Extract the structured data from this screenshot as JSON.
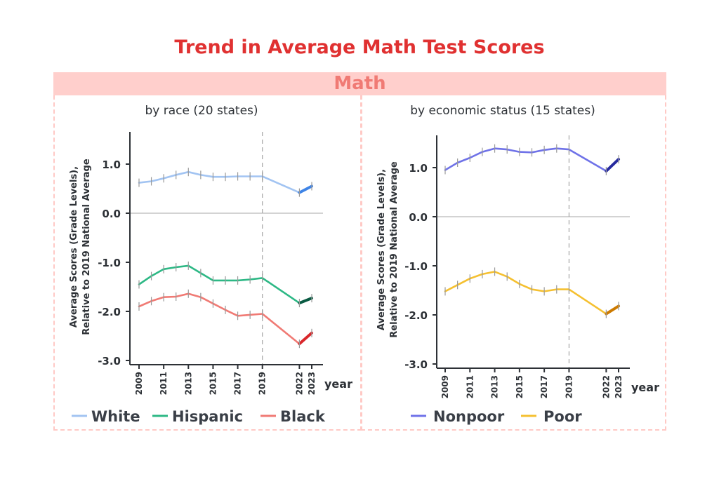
{
  "title": "Trend in Average Math Test Scores",
  "band_label": "Math",
  "colors": {
    "title": "#e03131",
    "band_bg": "#ffcfcc",
    "band_text": "#f07a74",
    "frame": "#ffc9c5",
    "axis": "#2d3136",
    "text": "#2d3136"
  },
  "chart_data": [
    {
      "type": "line",
      "title": "by race (20 states)",
      "xlabel": "year",
      "ylabel": "Average  Scores  (Grade  Levels),\nRelative to 2019 National Average",
      "xticks": [
        "2009",
        "2011",
        "2013",
        "2015",
        "2017",
        "2019",
        "2022",
        "2023"
      ],
      "yticks": [
        "1.0",
        "0.0",
        "-1.0",
        "-2.0",
        "-3.0"
      ],
      "ylim": [
        -3.0,
        1.6
      ],
      "xlim": [
        2009,
        2023
      ],
      "reference_line": {
        "y": 0.0
      },
      "marker_line": {
        "x": 2019,
        "style": "dashed"
      },
      "series": [
        {
          "name": "White",
          "color": "#a2c4f2",
          "color_2023": "#3f84e6",
          "x": [
            2009,
            2010,
            2011,
            2012,
            2013,
            2014,
            2015,
            2016,
            2017,
            2018,
            2019,
            2022,
            2023
          ],
          "y": [
            0.62,
            0.65,
            0.71,
            0.78,
            0.84,
            0.78,
            0.74,
            0.74,
            0.75,
            0.75,
            0.75,
            0.42,
            0.55
          ]
        },
        {
          "name": "Hispanic",
          "color": "#2db885",
          "color_2023": "#0a5b43",
          "x": [
            2009,
            2010,
            2011,
            2012,
            2013,
            2014,
            2015,
            2016,
            2017,
            2018,
            2019,
            2022,
            2023
          ],
          "y": [
            -1.45,
            -1.28,
            -1.14,
            -1.1,
            -1.07,
            -1.22,
            -1.37,
            -1.37,
            -1.37,
            -1.35,
            -1.32,
            -1.83,
            -1.73
          ]
        },
        {
          "name": "Black",
          "color": "#f07a74",
          "color_2023": "#d9272b",
          "x": [
            2009,
            2010,
            2011,
            2012,
            2013,
            2014,
            2015,
            2016,
            2017,
            2018,
            2019,
            2022,
            2023
          ],
          "y": [
            -1.9,
            -1.79,
            -1.71,
            -1.7,
            -1.64,
            -1.71,
            -1.84,
            -1.97,
            -2.09,
            -2.07,
            -2.05,
            -2.66,
            -2.44
          ]
        }
      ]
    },
    {
      "type": "line",
      "title": "by economic status (15 states)",
      "xlabel": "year",
      "ylabel": "Average  Scores  (Grade  Levels),\nRelative to 2019 National Average",
      "xticks": [
        "2009",
        "2011",
        "2013",
        "2015",
        "2017",
        "2019",
        "2022",
        "2023"
      ],
      "yticks": [
        "1.0",
        "0.0",
        "-1.0",
        "-2.0",
        "-3.0"
      ],
      "ylim": [
        -3.0,
        1.6
      ],
      "xlim": [
        2009,
        2023
      ],
      "reference_line": {
        "y": 0.0
      },
      "marker_line": {
        "x": 2019,
        "style": "dashed"
      },
      "series": [
        {
          "name": "Nonpoor",
          "color": "#6f72e8",
          "color_2023": "#262a9e",
          "x": [
            2009,
            2010,
            2011,
            2012,
            2013,
            2014,
            2015,
            2016,
            2017,
            2018,
            2019,
            2022,
            2023
          ],
          "y": [
            0.95,
            1.1,
            1.2,
            1.32,
            1.39,
            1.37,
            1.32,
            1.31,
            1.36,
            1.39,
            1.37,
            0.93,
            1.17
          ]
        },
        {
          "name": "Poor",
          "color": "#f5c030",
          "color_2023": "#cc7a00",
          "x": [
            2009,
            2010,
            2011,
            2012,
            2013,
            2014,
            2015,
            2016,
            2017,
            2018,
            2019,
            2022,
            2023
          ],
          "y": [
            -1.52,
            -1.39,
            -1.26,
            -1.17,
            -1.12,
            -1.22,
            -1.37,
            -1.48,
            -1.52,
            -1.48,
            -1.48,
            -1.98,
            -1.82
          ]
        }
      ]
    }
  ]
}
